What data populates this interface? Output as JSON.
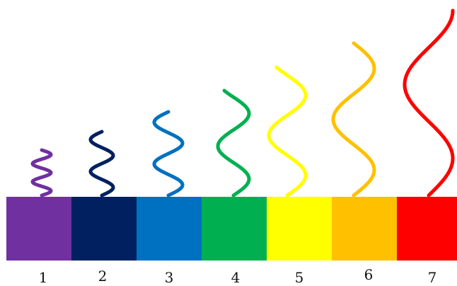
{
  "bands": [
    {
      "label": "1",
      "color": "#7030A0"
    },
    {
      "label": "2",
      "color": "#002060"
    },
    {
      "label": "3",
      "color": "#0070C0"
    },
    {
      "label": "4",
      "color": "#00B050"
    },
    {
      "label": "5",
      "color": "#FFFF00"
    },
    {
      "label": "6",
      "color": "#FFC000"
    },
    {
      "label": "7",
      "color": "#FF0000"
    }
  ]
}
